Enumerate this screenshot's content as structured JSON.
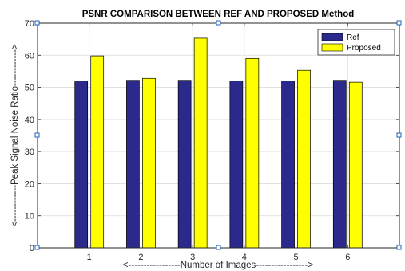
{
  "chart_data": {
    "type": "bar",
    "title": "PSNR COMPARISON BETWEEN REF AND PROPOSED Method",
    "xlabel": "<-----------------Number of Images----------------->",
    "ylabel": "<------------Peak Signal Noise Ratio------------>",
    "categories": [
      "1",
      "2",
      "3",
      "4",
      "5",
      "6"
    ],
    "series": [
      {
        "name": "Ref",
        "values": [
          52,
          52.2,
          52.2,
          52,
          52,
          52.2
        ],
        "color": "#2b2a8c"
      },
      {
        "name": "Proposed",
        "values": [
          59.8,
          52.8,
          65.3,
          59,
          55.3,
          51.6
        ],
        "color": "#ffff00"
      }
    ],
    "ylim": [
      0,
      70
    ],
    "yticks": [
      "0",
      "10",
      "20",
      "30",
      "40",
      "50",
      "60",
      "70"
    ],
    "grid": true,
    "legend_position": "top-right"
  }
}
